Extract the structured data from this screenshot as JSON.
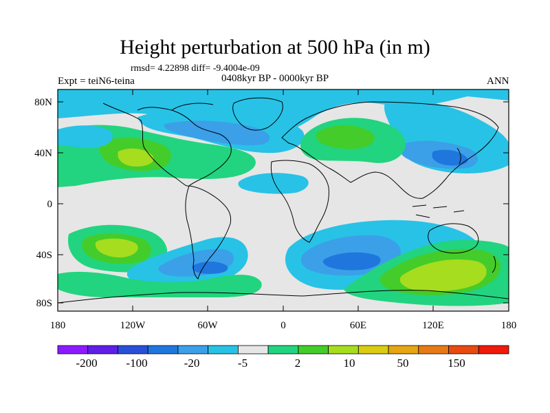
{
  "header": {
    "title": "Height perturbation at 500 hPa (in m)",
    "stats": "rmsd= 4.22898 diff= -9.4004e-09",
    "experiment": "Expt = teiN6-teina",
    "period": "0408kyr BP - 0000kyr BP",
    "season": "ANN"
  },
  "axes": {
    "lat_labels": [
      "80N",
      "40N",
      "0",
      "40S",
      "80S"
    ],
    "lon_labels": [
      "180",
      "120W",
      "60W",
      "0",
      "60E",
      "120E",
      "180"
    ]
  },
  "colorbar": {
    "colors": [
      "#8c1aff",
      "#5f1fe6",
      "#2a4fd8",
      "#1f77dd",
      "#3ba0e8",
      "#28c2e6",
      "#e6e6e6",
      "#22d47f",
      "#44cc2a",
      "#a6dd1e",
      "#d9cc12",
      "#e6a514",
      "#e67a16",
      "#e84a12",
      "#ee1a0a"
    ],
    "labels": [
      "-200",
      "-100",
      "-20",
      "-5",
      "2",
      "10",
      "50",
      "150"
    ]
  },
  "palette": {
    "neutral": "#e6e6e6",
    "pos1": "#22d47f",
    "pos2": "#44cc2a",
    "pos3": "#a6dd1e",
    "pos4": "#d9cc12",
    "neg1": "#28c2e6",
    "neg2": "#3ba0e8",
    "neg3": "#1f77dd",
    "coast": "#000000"
  }
}
